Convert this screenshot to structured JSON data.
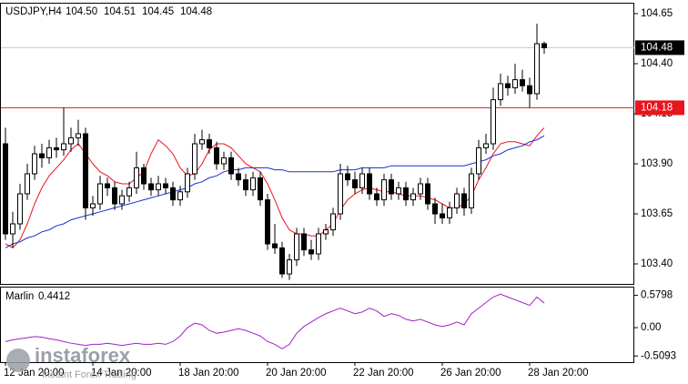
{
  "chart_data": [
    {
      "type": "candlestick",
      "title": "USDJPY,H4",
      "header_labels": [
        "104.50",
        "104.51",
        "104.45",
        "104.48"
      ],
      "categories": [
        "12 Jan 20:00",
        null,
        null,
        null,
        null,
        null,
        null,
        null,
        null,
        null,
        null,
        null,
        "14 Jan 20:00",
        null,
        null,
        null,
        null,
        null,
        null,
        null,
        null,
        null,
        null,
        null,
        "18 Jan 20:00",
        null,
        null,
        null,
        null,
        null,
        null,
        null,
        null,
        null,
        null,
        null,
        "20 Jan 20:00",
        null,
        null,
        null,
        null,
        null,
        null,
        null,
        null,
        null,
        null,
        null,
        "22 Jan 20:00",
        null,
        null,
        null,
        null,
        null,
        null,
        null,
        null,
        null,
        null,
        null,
        "26 Jan 20:00",
        null,
        null,
        null,
        null,
        null,
        null,
        null,
        null,
        null,
        null,
        null,
        "28 Jan 20:00",
        null,
        null
      ],
      "open": [
        104.0,
        103.55,
        103.6,
        103.75,
        103.85,
        103.95,
        103.93,
        103.98,
        103.97,
        104.0,
        104.03,
        104.05,
        103.68,
        103.7,
        103.8,
        103.78,
        103.7,
        103.74,
        103.78,
        103.88,
        103.8,
        103.77,
        103.8,
        103.78,
        103.72,
        103.76,
        103.85,
        104.0,
        104.02,
        103.98,
        103.9,
        103.93,
        103.85,
        103.82,
        103.77,
        103.83,
        103.72,
        103.5,
        103.48,
        103.35,
        103.42,
        103.55,
        103.47,
        103.45,
        103.55,
        103.57,
        103.65,
        103.85,
        103.82,
        103.78,
        103.85,
        103.75,
        103.72,
        103.82,
        103.75,
        103.78,
        103.72,
        103.75,
        103.8,
        103.7,
        103.65,
        103.63,
        103.68,
        103.75,
        103.68,
        103.85,
        103.98,
        104.0,
        104.22,
        104.3,
        104.28,
        104.32,
        104.29,
        104.25,
        104.5
      ],
      "high": [
        104.08,
        103.66,
        103.8,
        103.9,
        103.99,
        104.0,
        104.02,
        104.03,
        104.18,
        104.08,
        104.12,
        104.08,
        103.74,
        103.84,
        103.83,
        103.81,
        103.77,
        103.81,
        103.96,
        103.9,
        103.83,
        103.84,
        103.83,
        103.81,
        103.79,
        103.88,
        104.05,
        104.07,
        104.05,
        104.01,
        103.96,
        103.96,
        103.88,
        103.85,
        103.86,
        103.86,
        103.75,
        103.6,
        103.51,
        103.45,
        103.58,
        103.58,
        103.52,
        103.58,
        103.6,
        103.68,
        103.9,
        103.89,
        103.86,
        103.88,
        103.88,
        103.78,
        103.85,
        103.85,
        103.81,
        103.81,
        103.78,
        103.83,
        103.83,
        103.73,
        103.7,
        103.71,
        103.78,
        103.78,
        103.88,
        104.02,
        104.05,
        104.28,
        104.35,
        104.34,
        104.4,
        104.37,
        104.33,
        104.6,
        104.51
      ],
      "low": [
        103.52,
        103.48,
        103.57,
        103.72,
        103.82,
        103.88,
        103.9,
        103.93,
        103.94,
        103.96,
        103.99,
        103.62,
        103.64,
        103.67,
        103.74,
        103.67,
        103.67,
        103.71,
        103.75,
        103.77,
        103.74,
        103.74,
        103.75,
        103.69,
        103.69,
        103.73,
        103.82,
        103.97,
        103.95,
        103.87,
        103.87,
        103.82,
        103.79,
        103.74,
        103.74,
        103.69,
        103.47,
        103.45,
        103.33,
        103.32,
        103.39,
        103.44,
        103.42,
        103.42,
        103.52,
        103.54,
        103.62,
        103.79,
        103.75,
        103.75,
        103.72,
        103.69,
        103.69,
        103.72,
        103.72,
        103.69,
        103.69,
        103.72,
        103.67,
        103.6,
        103.6,
        103.6,
        103.65,
        103.64,
        103.65,
        103.82,
        103.95,
        103.97,
        104.19,
        104.24,
        104.25,
        104.26,
        104.18,
        104.22,
        104.45
      ],
      "close": [
        103.55,
        103.6,
        103.75,
        103.85,
        103.95,
        103.93,
        103.98,
        103.97,
        104.0,
        104.03,
        104.05,
        103.68,
        103.7,
        103.8,
        103.78,
        103.7,
        103.74,
        103.78,
        103.88,
        103.8,
        103.77,
        103.8,
        103.78,
        103.72,
        103.76,
        103.85,
        104.0,
        104.02,
        103.98,
        103.9,
        103.93,
        103.85,
        103.82,
        103.77,
        103.83,
        103.72,
        103.5,
        103.48,
        103.35,
        103.42,
        103.55,
        103.47,
        103.45,
        103.55,
        103.57,
        103.65,
        103.85,
        103.82,
        103.78,
        103.85,
        103.75,
        103.72,
        103.82,
        103.75,
        103.78,
        103.72,
        103.75,
        103.8,
        103.7,
        103.65,
        103.63,
        103.68,
        103.75,
        103.68,
        103.85,
        103.98,
        104.0,
        104.22,
        104.3,
        104.28,
        104.32,
        104.29,
        104.25,
        104.5,
        104.48
      ],
      "lines": [
        {
          "color": "#e8141e",
          "values": [
            103.5,
            103.48,
            103.52,
            103.6,
            103.7,
            103.78,
            103.84,
            103.88,
            103.92,
            103.97,
            104.0,
            103.95,
            103.9,
            103.86,
            103.84,
            103.81,
            103.8,
            103.8,
            103.83,
            103.86,
            103.95,
            104.02,
            103.99,
            103.95,
            103.88,
            103.84,
            103.85,
            103.9,
            103.97,
            104.0,
            104.0,
            103.98,
            103.94,
            103.9,
            103.88,
            103.86,
            103.8,
            103.72,
            103.63,
            103.57,
            103.55,
            103.55,
            103.54,
            103.54,
            103.57,
            103.6,
            103.67,
            103.72,
            103.75,
            103.77,
            103.78,
            103.77,
            103.76,
            103.76,
            103.75,
            103.74,
            103.74,
            103.74,
            103.73,
            103.72,
            103.7,
            103.68,
            103.68,
            103.7,
            103.74,
            103.82,
            103.88,
            103.95,
            104.0,
            104.01,
            104.01,
            104.0,
            103.99,
            104.04,
            104.08
          ]
        },
        {
          "color": "#1530d0",
          "values": [
            103.48,
            103.5,
            103.51,
            103.53,
            103.54,
            103.56,
            103.57,
            103.59,
            103.6,
            103.62,
            103.63,
            103.64,
            103.65,
            103.66,
            103.67,
            103.68,
            103.69,
            103.7,
            103.71,
            103.72,
            103.73,
            103.74,
            103.75,
            103.76,
            103.77,
            103.78,
            103.8,
            103.81,
            103.83,
            103.84,
            103.86,
            103.87,
            103.87,
            103.88,
            103.88,
            103.88,
            103.88,
            103.87,
            103.87,
            103.86,
            103.86,
            103.86,
            103.86,
            103.86,
            103.86,
            103.86,
            103.87,
            103.87,
            103.87,
            103.88,
            103.88,
            103.88,
            103.88,
            103.89,
            103.89,
            103.89,
            103.89,
            103.89,
            103.89,
            103.89,
            103.89,
            103.89,
            103.89,
            103.89,
            103.9,
            103.91,
            103.92,
            103.94,
            103.95,
            103.97,
            103.98,
            103.99,
            104.01,
            104.02,
            104.04
          ]
        }
      ],
      "level": 104.18,
      "level_color": "#e8141e",
      "ylim": [
        103.3,
        104.7
      ],
      "yticks": [
        104.65,
        {
          "value": 104.4,
          "label": "104.40"
        },
        104.15,
        {
          "value": 103.9,
          "label": "103.90"
        },
        103.65,
        {
          "value": 103.4,
          "label": "103.40"
        }
      ]
    },
    {
      "type": "line",
      "series": [
        {
          "name": "Marlin",
          "color": "#a020c8",
          "values": [
            -0.25,
            -0.22,
            -0.2,
            -0.18,
            -0.16,
            -0.17,
            -0.2,
            -0.22,
            -0.25,
            -0.28,
            -0.3,
            -0.32,
            -0.3,
            -0.3,
            -0.28,
            -0.3,
            -0.32,
            -0.3,
            -0.28,
            -0.3,
            -0.3,
            -0.28,
            -0.3,
            -0.25,
            -0.15,
            0.0,
            0.08,
            0.05,
            -0.05,
            -0.1,
            -0.08,
            -0.05,
            -0.02,
            -0.05,
            -0.1,
            -0.15,
            -0.25,
            -0.3,
            -0.38,
            -0.3,
            -0.1,
            0.02,
            0.1,
            0.18,
            0.25,
            0.3,
            0.35,
            0.3,
            0.25,
            0.28,
            0.35,
            0.3,
            0.2,
            0.25,
            0.22,
            0.15,
            0.12,
            0.15,
            0.1,
            0.05,
            0.02,
            0.05,
            0.1,
            0.05,
            0.25,
            0.35,
            0.45,
            0.55,
            0.6,
            0.55,
            0.5,
            0.45,
            0.4,
            0.55,
            0.4412
          ]
        }
      ],
      "ylim": [
        -0.62,
        0.72
      ],
      "yticks": [
        0.5798,
        {
          "value": 0,
          "label": "0.00"
        },
        -0.5093
      ]
    }
  ],
  "watermark": {
    "brand": "instaforex",
    "tagline": "Instant Forex Trading"
  }
}
